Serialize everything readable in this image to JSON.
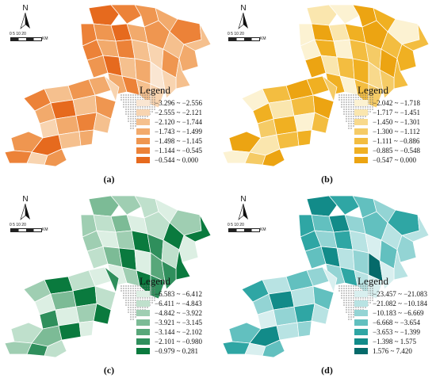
{
  "north_label": "N",
  "scale": {
    "ticks": "0  5  10      20",
    "unit": "KM"
  },
  "legend_title": "Legend",
  "panels": [
    {
      "caption": "(a)",
      "colors": [
        "#fae6d2",
        "#f8d4b0",
        "#f5c08e",
        "#f2aa6c",
        "#ef9650",
        "#ec8238",
        "#e66a1e"
      ],
      "labels": [
        "−3.296 ~ −2.556",
        "−2.555 ~ −2.121",
        "−2.120 ~ −1.744",
        "−1.743 ~ −1.499",
        "−1.498 ~ −1.145",
        "−1.144 ~ −0.545",
        "−0.544 ~ 0.000"
      ]
    },
    {
      "caption": "(b)",
      "colors": [
        "#fcf2d2",
        "#fae6ae",
        "#f8d98c",
        "#f5cb66",
        "#f3bd40",
        "#f0b022",
        "#eca412"
      ],
      "labels": [
        "−2.042 ~ −1.718",
        "−1.717 ~ −1.451",
        "−1.450 ~ −1.301",
        "−1.300 ~ −1.112",
        "−1.111 ~ −0.886",
        "−0.885 ~ −0.548",
        "−0.547 ~ 0.000"
      ]
    },
    {
      "caption": "(c)",
      "colors": [
        "#dcefe3",
        "#bfe0cc",
        "#9fceb2",
        "#7cbb96",
        "#58a77a",
        "#2f8f5c",
        "#0a7a3e"
      ],
      "labels": [
        "−6.583 ~ −6.412",
        "−6.411 ~ −4.843",
        "−4.842 ~ −3.922",
        "−3.921 ~ −3.145",
        "−3.144 ~ −2.102",
        "−2.101 ~ −0.980",
        "−0.979 ~ 0.281"
      ]
    },
    {
      "caption": "(d)",
      "colors": [
        "#d8efef",
        "#b8e3e3",
        "#93d4d4",
        "#62c0bf",
        "#2fa6a4",
        "#128b89",
        "#056a6a"
      ],
      "labels": [
        "−23.457 ~ −21.083",
        "−21.082 ~ −10.184",
        "−10.183 ~ −6.669",
        "−6.668 ~ −3.654",
        "−3.653 ~ −1.399",
        "−1.398 ~ 1.575",
        "1.576 ~ 7.420"
      ]
    }
  ]
}
